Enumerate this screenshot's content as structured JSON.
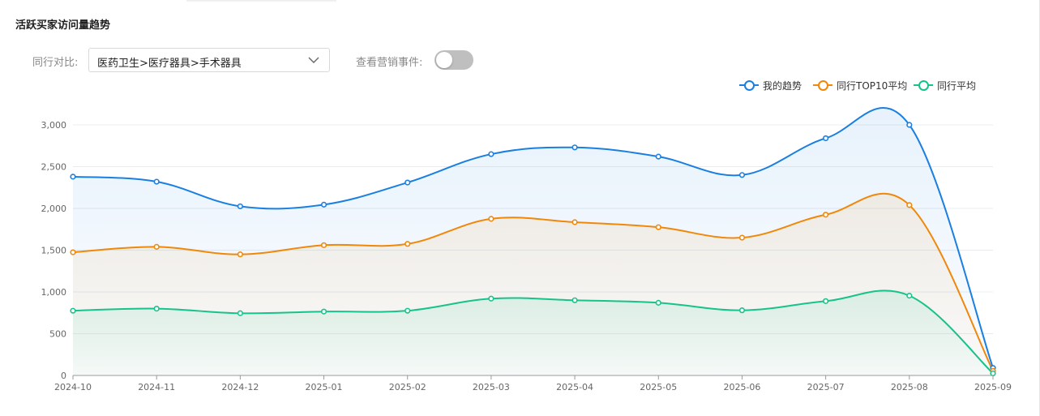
{
  "header": {
    "title": "活跃买家访问量趋势",
    "compare_label": "同行对比:",
    "compare_value": "医药卫生>医疗器具>手术器具",
    "event_label": "查看营销事件:",
    "event_toggle": "off"
  },
  "chart_data": {
    "type": "line",
    "area_fill": true,
    "smooth": true,
    "title": "",
    "xlabel": "",
    "ylabel": "",
    "categories": [
      "2024-10",
      "2024-11",
      "2024-12",
      "2025-01",
      "2025-02",
      "2025-03",
      "2025-04",
      "2025-05",
      "2025-06",
      "2025-07",
      "2025-08",
      "2025-09"
    ],
    "ylim": [
      0,
      3000
    ],
    "yticks": [
      "0",
      "500",
      "1,000",
      "1,500",
      "2,000",
      "2,500",
      "3,000"
    ],
    "ytick_values": [
      0,
      500,
      1000,
      1500,
      2000,
      2500,
      3000
    ],
    "grid": true,
    "legend": "top-right",
    "series": [
      {
        "name": "我的趋势",
        "color": "#1a7fe0",
        "values": [
          2380,
          2320,
          2025,
          2045,
          2310,
          2650,
          2730,
          2620,
          2400,
          2840,
          3000,
          90
        ]
      },
      {
        "name": "同行TOP10平均",
        "color": "#f0880a",
        "values": [
          1475,
          1540,
          1450,
          1560,
          1575,
          1875,
          1835,
          1775,
          1650,
          1925,
          2040,
          55
        ]
      },
      {
        "name": "同行平均",
        "color": "#17c38a",
        "values": [
          775,
          800,
          745,
          765,
          775,
          920,
          900,
          870,
          780,
          890,
          955,
          25
        ]
      }
    ]
  }
}
